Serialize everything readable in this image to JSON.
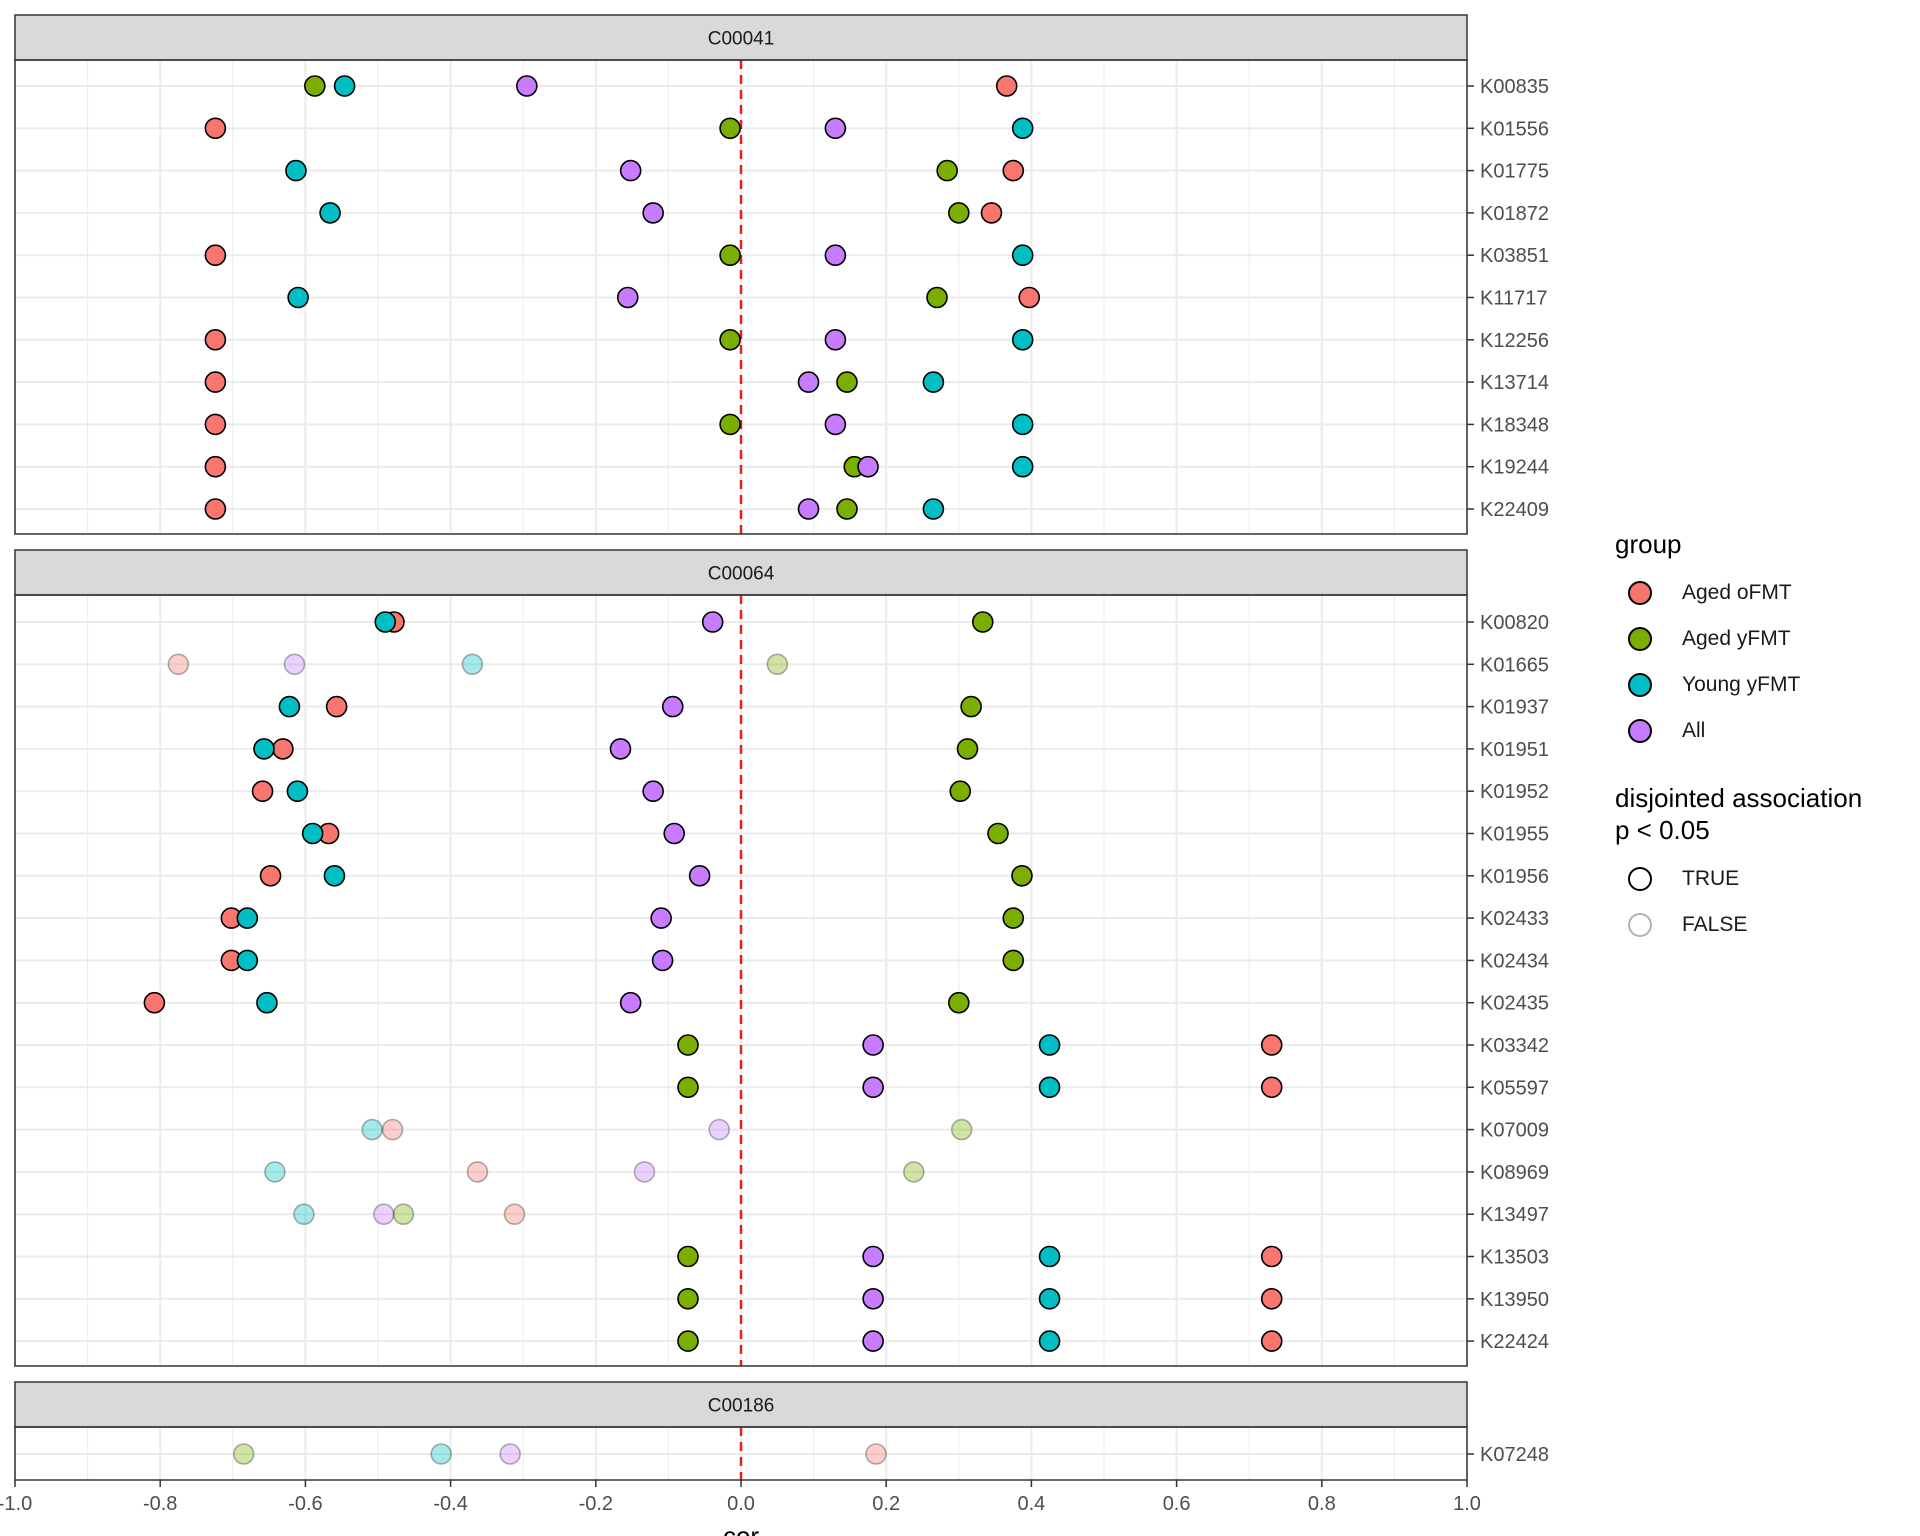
{
  "chart_data": {
    "type": "scatter",
    "xlabel": "cor",
    "xlim": [
      -1.0,
      1.0
    ],
    "xticks": [
      "-1.0",
      "-0.8",
      "-0.6",
      "-0.4",
      "-0.2",
      "0.0",
      "0.2",
      "0.4",
      "0.6",
      "0.8",
      "1.0"
    ],
    "reference_line": {
      "x": 0,
      "style": "dashed",
      "color": "#e8201f"
    },
    "grid": true,
    "legend_position": "right",
    "groups": [
      {
        "name": "Aged oFMT",
        "color": "#f8766d"
      },
      {
        "name": "Aged yFMT",
        "color": "#7cae00"
      },
      {
        "name": "Young yFMT",
        "color": "#00bfc4"
      },
      {
        "name": "All",
        "color": "#c77cff"
      }
    ],
    "panels": [
      {
        "label": "C00041",
        "rows": [
          {
            "label": "K00835",
            "sig": true,
            "values": [
              0.366,
              -0.587,
              -0.546,
              -0.295
            ]
          },
          {
            "label": "K01556",
            "sig": true,
            "values": [
              -0.724,
              -0.015,
              0.388,
              0.13
            ]
          },
          {
            "label": "K01775",
            "sig": true,
            "values": [
              0.375,
              0.284,
              -0.613,
              -0.152
            ]
          },
          {
            "label": "K01872",
            "sig": true,
            "values": [
              0.345,
              0.3,
              -0.566,
              -0.121
            ]
          },
          {
            "label": "K03851",
            "sig": true,
            "values": [
              -0.724,
              -0.015,
              0.388,
              0.13
            ]
          },
          {
            "label": "K11717",
            "sig": true,
            "values": [
              0.397,
              0.27,
              -0.61,
              -0.156
            ]
          },
          {
            "label": "K12256",
            "sig": true,
            "values": [
              -0.724,
              -0.015,
              0.388,
              0.13
            ]
          },
          {
            "label": "K13714",
            "sig": true,
            "values": [
              -0.724,
              0.146,
              0.265,
              0.093
            ]
          },
          {
            "label": "K18348",
            "sig": true,
            "values": [
              -0.724,
              -0.015,
              0.388,
              0.13
            ]
          },
          {
            "label": "K19244",
            "sig": true,
            "values": [
              -0.724,
              0.156,
              0.388,
              0.175
            ]
          },
          {
            "label": "K22409",
            "sig": true,
            "values": [
              -0.724,
              0.146,
              0.265,
              0.093
            ]
          }
        ]
      },
      {
        "label": "C00064",
        "rows": [
          {
            "label": "K00820",
            "sig": true,
            "values": [
              -0.478,
              0.333,
              -0.49,
              -0.039
            ]
          },
          {
            "label": "K01665",
            "sig": false,
            "values": [
              -0.775,
              0.05,
              -0.37,
              -0.615
            ]
          },
          {
            "label": "K01937",
            "sig": true,
            "values": [
              -0.557,
              0.317,
              -0.622,
              -0.094
            ]
          },
          {
            "label": "K01951",
            "sig": true,
            "values": [
              -0.631,
              0.312,
              -0.657,
              -0.166
            ]
          },
          {
            "label": "K01952",
            "sig": true,
            "values": [
              -0.659,
              0.302,
              -0.611,
              -0.121
            ]
          },
          {
            "label": "K01955",
            "sig": true,
            "values": [
              -0.568,
              0.354,
              -0.59,
              -0.092
            ]
          },
          {
            "label": "K01956",
            "sig": true,
            "values": [
              -0.648,
              0.387,
              -0.56,
              -0.057
            ]
          },
          {
            "label": "K02433",
            "sig": true,
            "values": [
              -0.702,
              0.375,
              -0.68,
              -0.11
            ]
          },
          {
            "label": "K02434",
            "sig": true,
            "values": [
              -0.702,
              0.375,
              -0.68,
              -0.108
            ]
          },
          {
            "label": "K02435",
            "sig": true,
            "values": [
              -0.808,
              0.3,
              -0.653,
              -0.152
            ]
          },
          {
            "label": "K03342",
            "sig": true,
            "values": [
              0.731,
              -0.073,
              0.425,
              0.182
            ]
          },
          {
            "label": "K05597",
            "sig": true,
            "values": [
              0.731,
              -0.073,
              0.425,
              0.182
            ]
          },
          {
            "label": "K07009",
            "sig": false,
            "values": [
              -0.48,
              0.304,
              -0.508,
              -0.03
            ]
          },
          {
            "label": "K08969",
            "sig": false,
            "values": [
              -0.363,
              0.238,
              -0.642,
              -0.133
            ]
          },
          {
            "label": "K13497",
            "sig": false,
            "values": [
              -0.312,
              -0.465,
              -0.602,
              -0.492
            ]
          },
          {
            "label": "K13503",
            "sig": true,
            "values": [
              0.731,
              -0.073,
              0.425,
              0.182
            ]
          },
          {
            "label": "K13950",
            "sig": true,
            "values": [
              0.731,
              -0.073,
              0.425,
              0.182
            ]
          },
          {
            "label": "K22424",
            "sig": true,
            "values": [
              0.731,
              -0.073,
              0.425,
              0.182
            ]
          }
        ]
      },
      {
        "label": "C00186",
        "rows": [
          {
            "label": "K07248",
            "sig": false,
            "values": [
              0.186,
              -0.685,
              -0.413,
              -0.318
            ]
          }
        ]
      }
    ]
  },
  "legend": {
    "group_title": "group",
    "group_items": [
      "Aged oFMT",
      "Aged yFMT",
      "Young yFMT",
      "All"
    ],
    "sig_title": "disjointed association\np < 0.05",
    "sig_items": [
      "TRUE",
      "FALSE"
    ]
  }
}
